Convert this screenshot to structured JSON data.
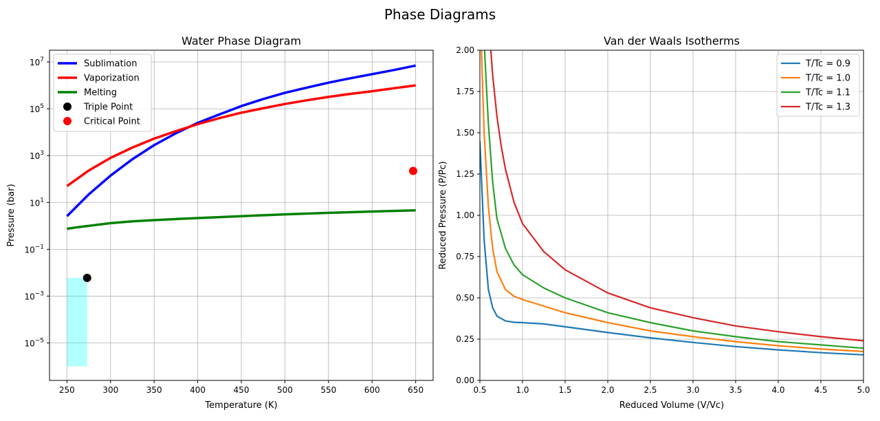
{
  "figure": {
    "suptitle": "Phase Diagrams"
  },
  "chart_data": [
    {
      "type": "line",
      "title": "Water Phase Diagram",
      "xlabel": "Temperature (K)",
      "ylabel": "Pressure (bar)",
      "xlim": [
        230,
        670
      ],
      "ylim_log10": [
        -6.6,
        7.5
      ],
      "yscale": "log",
      "grid": true,
      "legend_loc": "upper-left",
      "xticks": [
        250,
        300,
        350,
        400,
        450,
        500,
        550,
        600,
        650
      ],
      "yticks_exp": [
        -5,
        -3,
        -1,
        1,
        3,
        5,
        7
      ],
      "series": [
        {
          "name": "Sublimation",
          "color": "#0000ff",
          "x": [
            250,
            275,
            300,
            325,
            350,
            375,
            400,
            425,
            450,
            475,
            500,
            525,
            550,
            575,
            600,
            625,
            650
          ],
          "y": [
            2.6,
            22,
            140,
            700,
            2800,
            9000,
            25000,
            58000,
            130000,
            260000,
            480000,
            800000,
            1300000,
            2000000,
            3000000,
            4500000,
            7000000
          ]
        },
        {
          "name": "Vaporization",
          "color": "#ff0000",
          "x": [
            250,
            275,
            300,
            325,
            350,
            375,
            400,
            425,
            450,
            475,
            500,
            525,
            550,
            575,
            600,
            625,
            650
          ],
          "y": [
            50,
            230,
            800,
            2200,
            5300,
            11000,
            22000,
            40000,
            68000,
            105000,
            160000,
            230000,
            320000,
            430000,
            560000,
            750000,
            1000000
          ]
        },
        {
          "name": "Melting",
          "color": "#008000",
          "x": [
            250,
            260,
            275,
            300,
            325,
            350,
            375,
            400,
            450,
            500,
            550,
            600,
            650
          ],
          "y": [
            0.75,
            0.85,
            1.0,
            1.3,
            1.55,
            1.75,
            1.95,
            2.15,
            2.6,
            3.1,
            3.6,
            4.1,
            4.6
          ]
        }
      ],
      "points": [
        {
          "name": "Triple Point",
          "color": "#000000",
          "x": 273.16,
          "y": 0.006
        },
        {
          "name": "Critical Point",
          "color": "#ff0000",
          "x": 647.1,
          "y": 220.6
        }
      ],
      "region": {
        "color": "#00ffff",
        "x": [
          250,
          273.16
        ],
        "y": [
          1e-06,
          0.006
        ]
      }
    },
    {
      "type": "line",
      "title": "Van der Waals Isotherms",
      "xlabel": "Reduced Volume (V/Vc)",
      "ylabel": "Reduced Pressure (P/Pc)",
      "xlim": [
        0.5,
        5.0
      ],
      "ylim": [
        0,
        2.0
      ],
      "grid": true,
      "legend_loc": "upper-right",
      "xticks": [
        0.5,
        1.0,
        1.5,
        2.0,
        2.5,
        3.0,
        3.5,
        4.0,
        4.5,
        5.0
      ],
      "yticks": [
        0.0,
        0.25,
        0.5,
        0.75,
        1.0,
        1.25,
        1.5,
        1.75,
        2.0
      ],
      "series": [
        {
          "name": "T/Tc = 0.9",
          "color": "#1f77b4",
          "x": [
            0.5,
            0.55,
            0.6,
            0.65,
            0.7,
            0.8,
            0.9,
            1.0,
            1.25,
            1.5,
            2.0,
            2.5,
            3.0,
            3.5,
            4.0,
            4.5,
            5.0
          ],
          "y": [
            1.45,
            0.85,
            0.55,
            0.44,
            0.39,
            0.36,
            0.352,
            0.35,
            0.342,
            0.325,
            0.29,
            0.258,
            0.23,
            0.205,
            0.185,
            0.168,
            0.155
          ]
        },
        {
          "name": "T/Tc = 1.0",
          "color": "#ff7f0e",
          "x": [
            0.5,
            0.55,
            0.6,
            0.65,
            0.7,
            0.8,
            0.9,
            1.0,
            1.25,
            1.5,
            2.0,
            2.5,
            3.0,
            3.5,
            4.0,
            4.5,
            5.0
          ],
          "y": [
            2.3,
            1.5,
            1.05,
            0.8,
            0.66,
            0.55,
            0.51,
            0.49,
            0.45,
            0.41,
            0.35,
            0.3,
            0.265,
            0.235,
            0.21,
            0.19,
            0.175
          ]
        },
        {
          "name": "T/Tc = 1.1",
          "color": "#2ca02c",
          "x": [
            0.5,
            0.55,
            0.6,
            0.65,
            0.7,
            0.8,
            0.9,
            1.0,
            1.25,
            1.5,
            2.0,
            2.5,
            3.0,
            3.5,
            4.0,
            4.5,
            5.0
          ],
          "y": [
            3.2,
            2.05,
            1.55,
            1.2,
            0.98,
            0.8,
            0.7,
            0.64,
            0.56,
            0.5,
            0.41,
            0.35,
            0.3,
            0.265,
            0.235,
            0.215,
            0.195
          ]
        },
        {
          "name": "T/Tc = 1.3",
          "color": "#d62728",
          "x": [
            0.6,
            0.65,
            0.7,
            0.75,
            0.8,
            0.9,
            1.0,
            1.25,
            1.5,
            2.0,
            2.5,
            3.0,
            3.5,
            4.0,
            4.5,
            5.0
          ],
          "y": [
            2.2,
            1.85,
            1.6,
            1.42,
            1.28,
            1.08,
            0.95,
            0.78,
            0.67,
            0.53,
            0.44,
            0.38,
            0.33,
            0.295,
            0.265,
            0.24
          ]
        }
      ]
    }
  ]
}
